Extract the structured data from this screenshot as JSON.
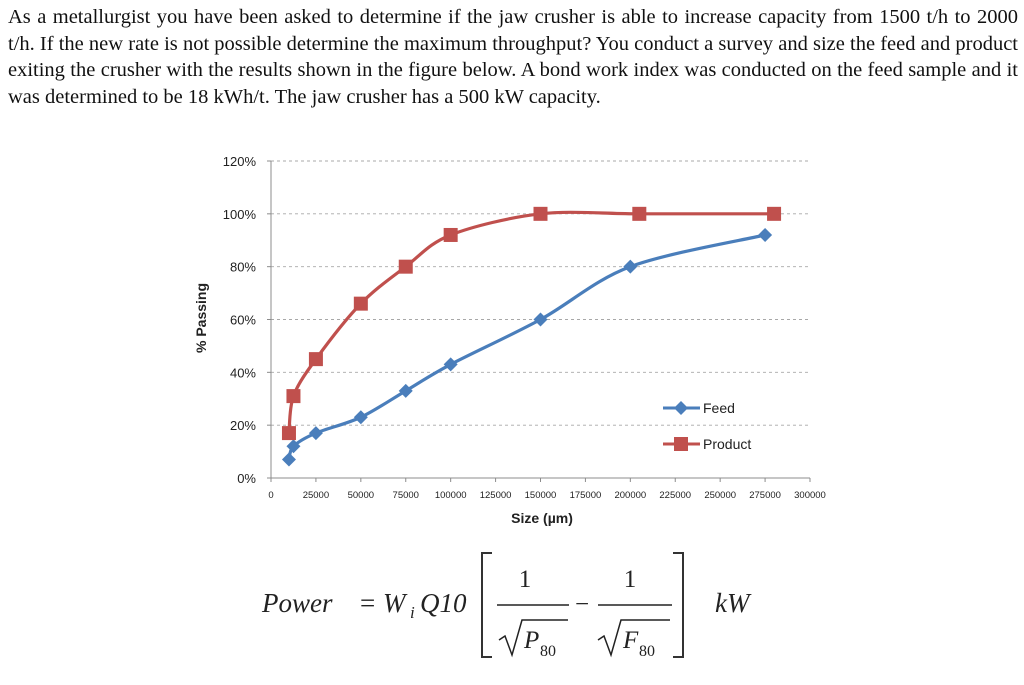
{
  "problem_text": "As a metallurgist you have been asked to determine if the jaw crusher is able to increase capacity from 1500 t/h to 2000 t/h. If the new rate is not possible determine the maximum throughput? You conduct a survey and size the feed and product exiting the crusher with the results shown in the figure below. A bond work index was conducted on the feed sample and it was determined to be 18 kWh/t. The jaw crusher has a 500 kW capacity.",
  "chart_data": {
    "type": "line",
    "title": "",
    "xlabel": "Size (µm)",
    "ylabel": "% Passing",
    "xlim": [
      0,
      300000
    ],
    "ylim": [
      0,
      1.2
    ],
    "x_ticks": [
      0,
      25000,
      50000,
      75000,
      100000,
      125000,
      150000,
      175000,
      200000,
      225000,
      250000,
      275000,
      300000
    ],
    "y_ticks": [
      0,
      0.2,
      0.4,
      0.6,
      0.8,
      1.0,
      1.2
    ],
    "y_tick_labels": [
      "0%",
      "20%",
      "40%",
      "60%",
      "80%",
      "100%",
      "120%"
    ],
    "grid": true,
    "legend_position": "right",
    "series": [
      {
        "name": "Feed",
        "color": "#4a7ebb",
        "marker": "diamond",
        "x": [
          10000,
          12500,
          25000,
          50000,
          75000,
          100000,
          150000,
          200000,
          275000
        ],
        "y": [
          0.07,
          0.12,
          0.17,
          0.23,
          0.33,
          0.43,
          0.6,
          0.8,
          0.92
        ]
      },
      {
        "name": "Product",
        "color": "#c0504d",
        "marker": "square",
        "x": [
          10000,
          12500,
          25000,
          50000,
          75000,
          100000,
          150000,
          205000,
          280000
        ],
        "y": [
          0.17,
          0.31,
          0.45,
          0.66,
          0.8,
          0.92,
          1.0,
          1.0,
          1.0
        ]
      }
    ]
  },
  "formula": {
    "lhs": "Power",
    "equals": "=",
    "wi": "W",
    "wi_sub": "i",
    "q10": "Q10",
    "one": "1",
    "p_sym": "P",
    "f_sym": "F",
    "sub80": "80",
    "minus": "−",
    "unit": "kW"
  }
}
